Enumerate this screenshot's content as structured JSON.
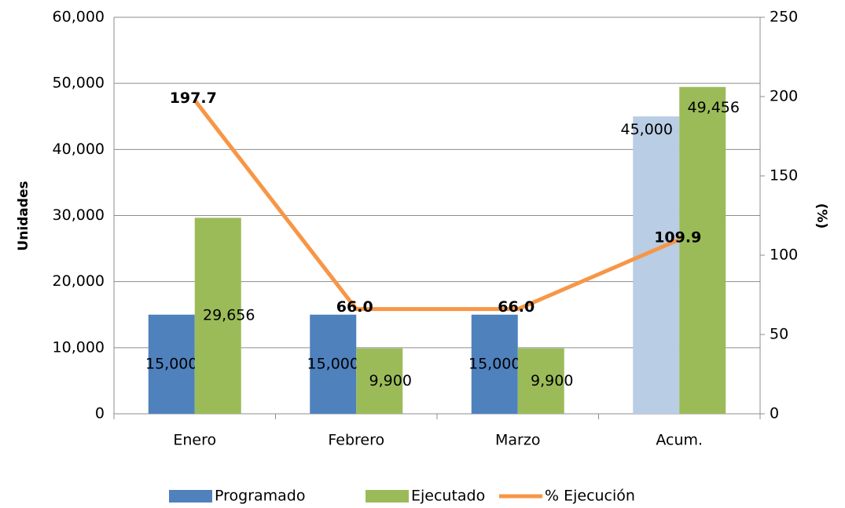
{
  "chart_data": {
    "type": "bar",
    "categories": [
      "Enero",
      "Febrero",
      "Marzo",
      "Acum."
    ],
    "series": [
      {
        "name": "Programado",
        "color": "#4f81bd",
        "colors": [
          "#4f81bd",
          "#4f81bd",
          "#4f81bd",
          "#b9cde5"
        ],
        "values": [
          15000,
          15000,
          15000,
          45000
        ],
        "value_labels": [
          "15,000",
          "15,000",
          "15,000",
          "45,000"
        ]
      },
      {
        "name": "Ejecutado",
        "color": "#9bbb59",
        "values": [
          29656,
          9900,
          9900,
          49456
        ],
        "value_labels": [
          "29,656",
          "9,900",
          "9,900",
          "49,456"
        ]
      },
      {
        "name": "% Ejecución",
        "type": "line",
        "axis": "y2",
        "color": "#f79646",
        "values": [
          197.7,
          66.0,
          66.0,
          109.9
        ],
        "value_labels": [
          "197.7",
          "66.0",
          "66.0",
          "109.9"
        ]
      }
    ],
    "y_label": "Unidades",
    "y2_label": "(%)",
    "ylim": [
      0,
      60000
    ],
    "yticks": [
      0,
      {
        "value": 10000,
        "label": "10,000"
      },
      {
        "value": 20000,
        "label": "20,000"
      },
      {
        "value": 30000,
        "label": "30,000"
      },
      {
        "value": 40000,
        "label": "40,000"
      },
      {
        "value": 50000,
        "label": "50,000"
      },
      {
        "value": 60000,
        "label": "60,000"
      }
    ],
    "y2lim": [
      0,
      250
    ],
    "y2ticks": [
      0,
      50,
      100,
      150,
      200,
      250
    ],
    "grid": true,
    "legend": "bottom"
  }
}
